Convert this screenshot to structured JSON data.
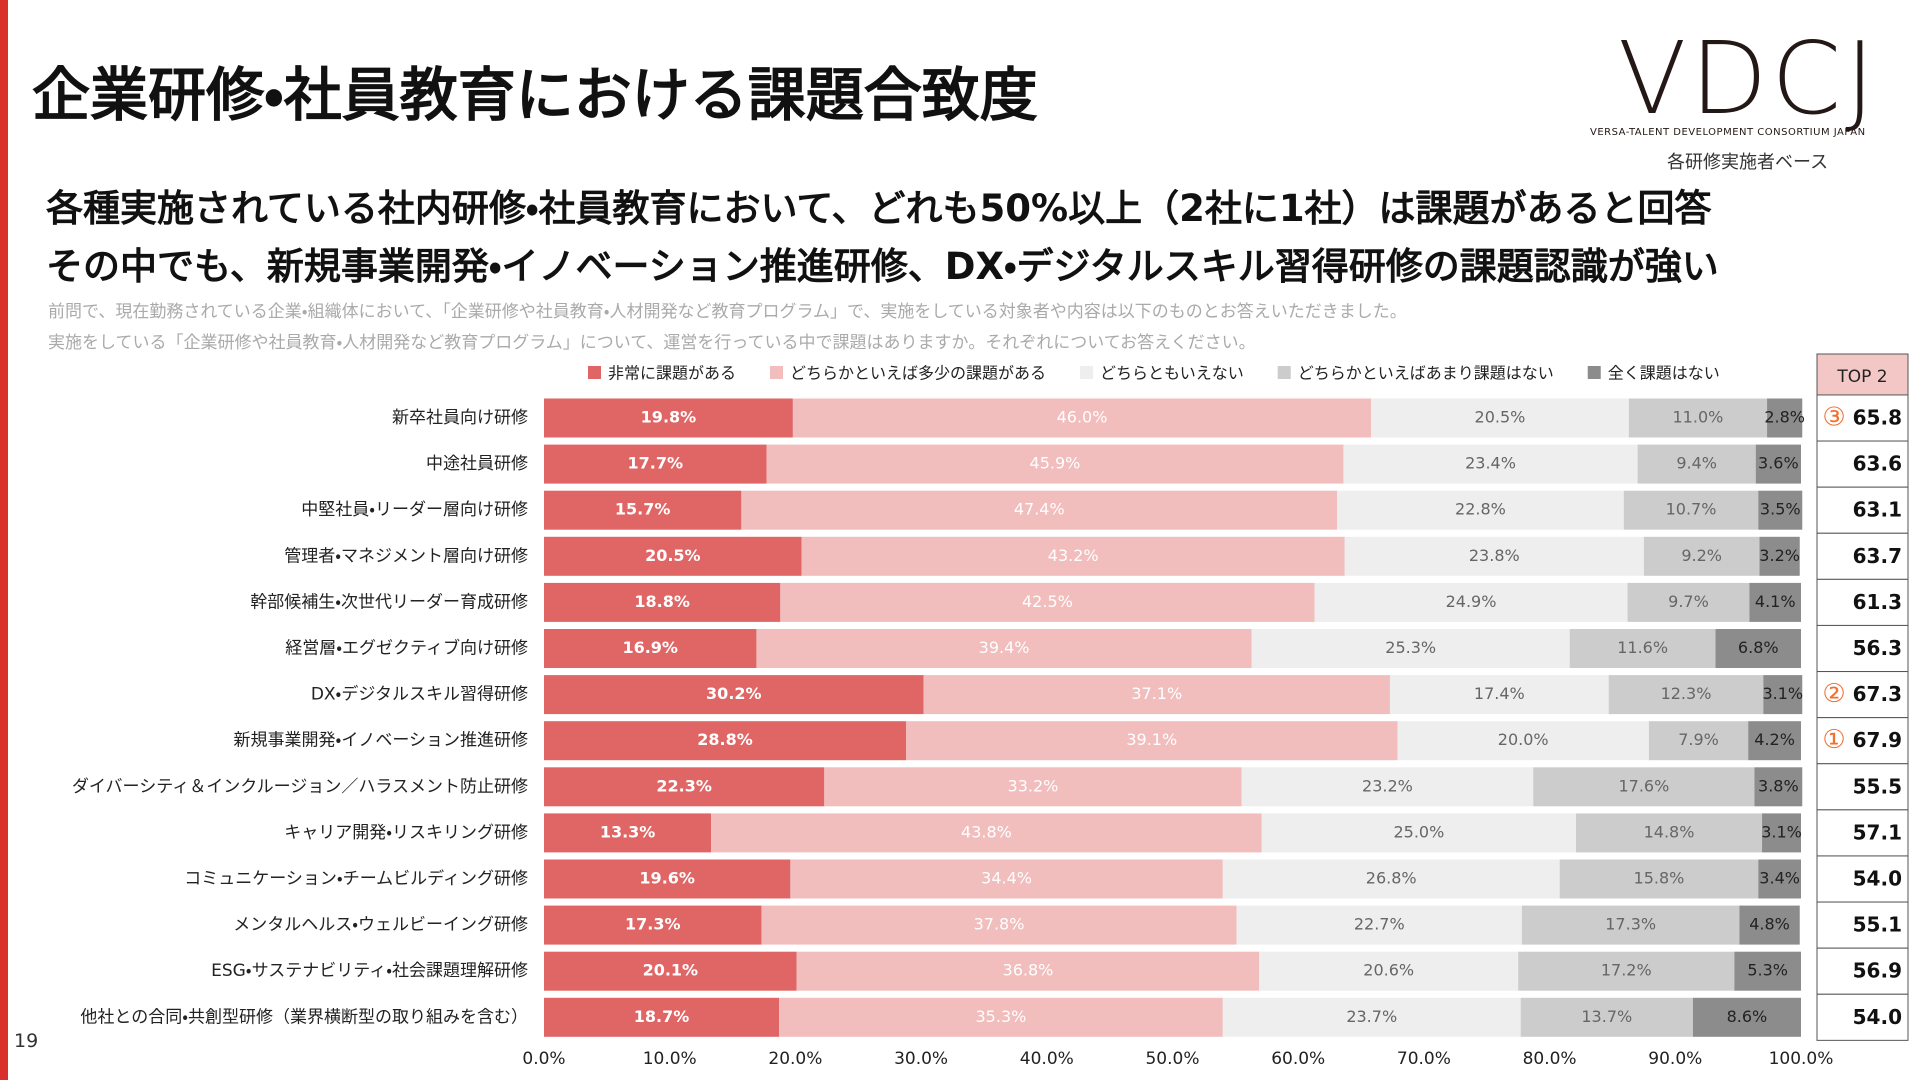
{
  "header": {
    "title": "企業研修・社員教育における課題合致度",
    "logo": "VDCJ",
    "logo_caption": "VERSA-TALENT DEVELOPMENT CONSORTIUM JAPAN",
    "base_note": "各研修実施者ベース",
    "headline": [
      "各種実施されている社内研修・社員教育において、どれも50%以上（2社に1社）は課題があると回答",
      "その中でも、新規事業開発・イノベーション推進研修、DX・デジタルスキル習得研修の課題認識が強い"
    ],
    "notes": [
      "前問で、現在勤務されている企業・組織体において、「企業研修や社員教育・人材開発など教育プログラム」で、実施をしている対象者や内容は以下のものとお答えいただきました。",
      "実施をしている「企業研修や社員教育・人材開発など教育プログラム」について、運営を行っている中で課題はありますか。それぞれについてお答えください。"
    ],
    "page_number": "19"
  },
  "chart_data": {
    "type": "stacked_bar_horizontal",
    "categories": [
      "新卒社員向け研修",
      "中途社員研修",
      "中堅社員・リーダー層向け研修",
      "管理者・マネジメント層向け研修",
      "幹部候補生・次世代リーダー育成研修",
      "経営層・エグゼクティブ向け研修",
      "DX・デジタルスキル習得研修",
      "新規事業開発・イノベーション推進研修",
      "ダイバーシティ＆インクルージョン／ハラスメント防止研修",
      "キャリア開発・リスキリング研修",
      "コミュニケーション・チームビルディング研修",
      "メンタルヘルス・ウェルビーイング研修",
      "ESG・サステナビリティ・社会課題理解研修",
      "他社との合同・共創型研修（業界横断型の取り組みを含む）"
    ],
    "series": [
      {
        "name": "非常に課題がある",
        "color": "#e06666",
        "label_color": "#ffffff",
        "values": [
          19.8,
          17.7,
          15.7,
          20.5,
          18.8,
          16.9,
          30.2,
          28.8,
          22.3,
          13.3,
          19.6,
          17.3,
          20.1,
          18.7
        ],
        "value_labels": [
          "19.8%",
          "17.7%",
          "15.7%",
          "20.5%",
          "18.8%",
          "16.9%",
          "30.2%",
          "28.8%",
          "22.3%",
          "13.3%",
          "19.6%",
          "17.3%",
          "20.1%",
          "18.7%"
        ]
      },
      {
        "name": "どちらかといえば多少の課題がある",
        "color": "#f2bdbd",
        "label_color": "#ffffff",
        "values": [
          46.0,
          45.9,
          47.4,
          43.2,
          42.5,
          39.4,
          37.1,
          39.1,
          33.2,
          43.8,
          34.4,
          37.8,
          36.8,
          35.3
        ],
        "value_labels": [
          "46.0%",
          "45.9%",
          "47.4%",
          "43.2%",
          "42.5%",
          "39.4%",
          "37.1%",
          "39.1%",
          "33.2%",
          "43.8%",
          "34.4%",
          "37.8%",
          "36.8%",
          "35.3%"
        ]
      },
      {
        "name": "どちらともいえない",
        "color": "#eeeeee",
        "label_color": "#666666",
        "values": [
          20.5,
          23.4,
          22.8,
          23.8,
          24.9,
          25.3,
          17.4,
          20.0,
          23.2,
          25.0,
          26.8,
          22.7,
          20.6,
          23.7
        ],
        "value_labels": [
          "20.5%",
          "23.4%",
          "22.8%",
          "23.8%",
          "24.9%",
          "25.3%",
          "17.4%",
          "20.0%",
          "23.2%",
          "25.0%",
          "26.8%",
          "22.7%",
          "20.6%",
          "23.7%"
        ]
      },
      {
        "name": "どちらかといえばあまり課題はない",
        "color": "#cccccc",
        "label_color": "#666666",
        "values": [
          11.0,
          9.4,
          10.7,
          9.2,
          9.7,
          11.6,
          12.3,
          7.9,
          17.6,
          14.8,
          15.8,
          17.3,
          17.2,
          13.7
        ],
        "value_labels": [
          "11.0%",
          "9.4%",
          "10.7%",
          "9.2%",
          "9.7%",
          "11.6%",
          "12.3%",
          "7.9%",
          "17.6%",
          "14.8%",
          "15.8%",
          "17.3%",
          "17.2%",
          "13.7%"
        ]
      },
      {
        "name": "全く課題はない",
        "color": "#8c8c8c",
        "label_color": "#222222",
        "values": [
          2.8,
          3.6,
          3.5,
          3.2,
          4.1,
          6.8,
          3.1,
          4.2,
          3.8,
          3.1,
          3.4,
          4.8,
          5.3,
          8.6
        ],
        "value_labels": [
          "2.8%",
          "3.6%",
          "3.5%",
          "3.2%",
          "4.1%",
          "6.8%",
          "3.1%",
          "4.2%",
          "3.8%",
          "3.1%",
          "3.4%",
          "4.8%",
          "5.3%",
          "8.6%"
        ]
      }
    ],
    "xlim": [
      0,
      100
    ],
    "xticks": [
      {
        "value": 0,
        "label": "0.0%"
      },
      {
        "value": 10,
        "label": "10.0%"
      },
      {
        "value": 20,
        "label": "20.0%"
      },
      {
        "value": 30,
        "label": "30.0%"
      },
      {
        "value": 40,
        "label": "40.0%"
      },
      {
        "value": 50,
        "label": "50.0%"
      },
      {
        "value": 60,
        "label": "60.0%"
      },
      {
        "value": 70,
        "label": "70.0%"
      },
      {
        "value": 80,
        "label": "80.0%"
      },
      {
        "value": 90,
        "label": "90.0%"
      },
      {
        "value": 100,
        "label": "100.0%"
      }
    ],
    "legend": "top",
    "grid": false
  },
  "top2": {
    "header": "TOP 2",
    "values": [
      "65.8",
      "63.6",
      "63.1",
      "63.7",
      "61.3",
      "56.3",
      "67.3",
      "67.9",
      "55.5",
      "57.1",
      "54.0",
      "55.1",
      "56.9",
      "54.0"
    ],
    "ranks": [
      "③",
      null,
      null,
      null,
      null,
      null,
      "②",
      "①",
      null,
      null,
      null,
      null,
      null,
      null
    ],
    "rank_color": "#f07030"
  }
}
